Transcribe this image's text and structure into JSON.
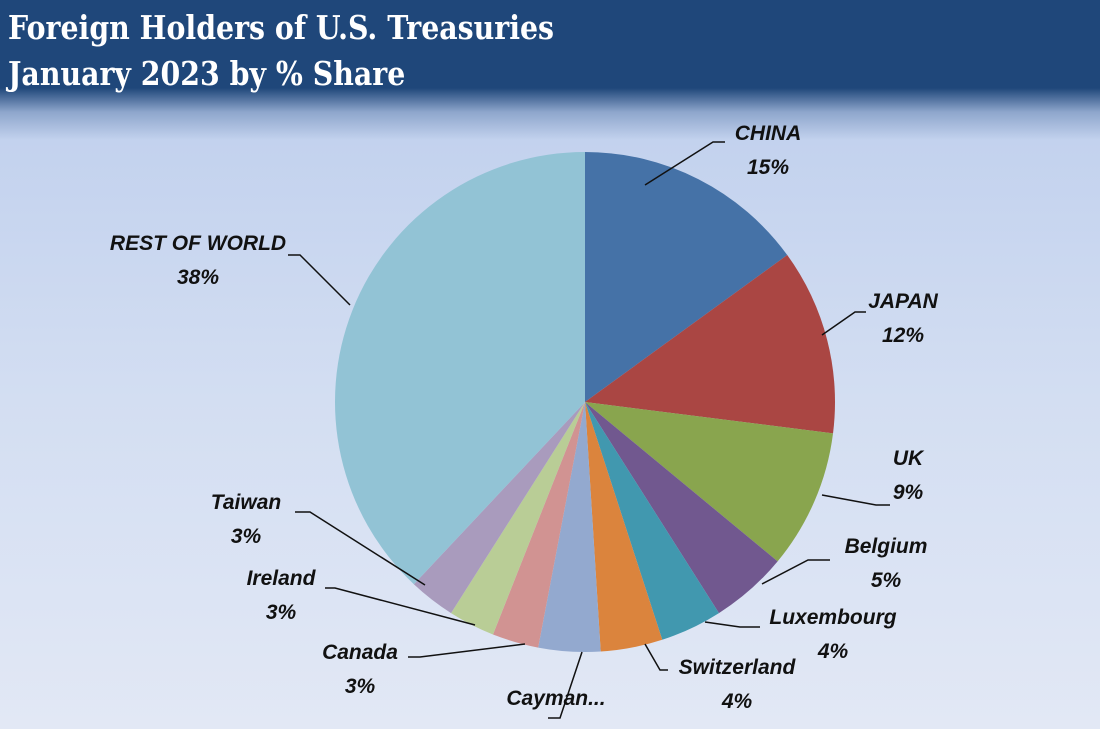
{
  "chart_data": {
    "type": "pie",
    "title": [
      "Foreign Holders of U.S. Treasuries",
      "January 2023 by % Share"
    ],
    "start_angle": "12 o'clock, clockwise",
    "unit": "%",
    "slices": [
      {
        "label": "CHINA",
        "value": 15,
        "value_label": "15%",
        "color": "#4572a7"
      },
      {
        "label": "JAPAN",
        "value": 12,
        "value_label": "12%",
        "color": "#aa4643"
      },
      {
        "label": "UK",
        "value": 9,
        "value_label": "9%",
        "color": "#89a54e"
      },
      {
        "label": "Belgium",
        "value": 5,
        "value_label": "5%",
        "color": "#71588f"
      },
      {
        "label": "Luxembourg",
        "value": 4,
        "value_label": "4%",
        "color": "#4198af"
      },
      {
        "label": "Switzerland",
        "value": 4,
        "value_label": "4%",
        "color": "#db843d"
      },
      {
        "label": "Cayman...",
        "value": 4,
        "value_label": "",
        "color": "#93a9cf"
      },
      {
        "label": "Canada",
        "value": 3,
        "value_label": "3%",
        "color": "#d19392"
      },
      {
        "label": "Ireland",
        "value": 3,
        "value_label": "3%",
        "color": "#b9cd96"
      },
      {
        "label": "Taiwan",
        "value": 3,
        "value_label": "3%",
        "color": "#a99bbd"
      },
      {
        "label": "REST OF WORLD",
        "value": 38,
        "value_label": "38%",
        "color": "#92c3d5"
      }
    ]
  }
}
